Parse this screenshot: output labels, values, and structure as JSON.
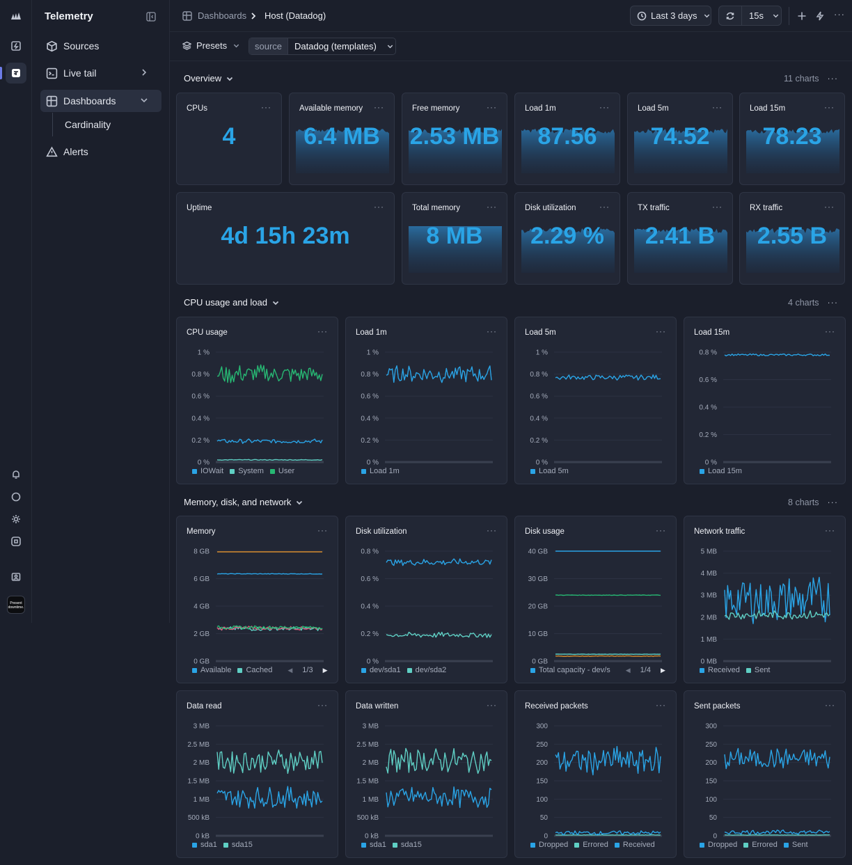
{
  "app": {
    "title": "Telemetry"
  },
  "nav": {
    "items": [
      {
        "label": "Sources",
        "icon": "cube-icon"
      },
      {
        "label": "Live tail",
        "icon": "terminal-icon"
      },
      {
        "label": "Dashboards",
        "icon": "dashboard-icon"
      },
      {
        "label": "Alerts",
        "icon": "warning-icon"
      }
    ],
    "sub": {
      "cardinality": "Cardinality"
    },
    "rail_icon": "logo-badge-icon"
  },
  "breadcrumb": {
    "root": "Dashboards",
    "current": "Host (Datadog)"
  },
  "toolbar": {
    "time_range": "Last 3 days",
    "refresh_interval": "15s"
  },
  "filters": {
    "presets": "Presets",
    "source_label": "source",
    "source_value": "Datadog (templates)"
  },
  "sections": {
    "overview": {
      "title": "Overview",
      "count": "11 charts"
    },
    "cpu": {
      "title": "CPU usage and load",
      "count": "4 charts"
    },
    "memory": {
      "title": "Memory, disk, and network",
      "count": "8 charts"
    }
  },
  "stats": [
    {
      "title": "CPUs",
      "value": "4"
    },
    {
      "title": "Available memory",
      "value": "6.4 MB"
    },
    {
      "title": "Free memory",
      "value": "2.53 MB"
    },
    {
      "title": "Load 1m",
      "value": "87.56"
    },
    {
      "title": "Load 5m",
      "value": "74.52"
    },
    {
      "title": "Load 15m",
      "value": "78.23"
    },
    {
      "title": "Uptime",
      "value": "4d 15h 23m"
    },
    {
      "title": "Total memory",
      "value": "8 MB"
    },
    {
      "title": "Disk utilization",
      "value": "2.29 %"
    },
    {
      "title": "TX traffic",
      "value": "2.41 B"
    },
    {
      "title": "RX traffic",
      "value": "2.55 B"
    }
  ],
  "colors": {
    "blue": "#2aa4e6",
    "teal": "#5fcfc4",
    "green": "#27b873",
    "orange": "#d48a2c",
    "pink": "#d9577a"
  },
  "chart_data": [
    {
      "type": "line",
      "title": "CPU usage",
      "yticks": [
        "1 %",
        "0.8 %",
        "0.6 %",
        "0.4 %",
        "0.2 %",
        "0 %"
      ],
      "ylim": [
        0,
        1
      ],
      "series": [
        {
          "name": "IOWait",
          "color": "#2aa4e6",
          "level": 0.19,
          "amp": 0.025,
          "noise": "medium"
        },
        {
          "name": "System",
          "color": "#5fcfc4",
          "level": 0.02,
          "amp": 0.006,
          "noise": "low"
        },
        {
          "name": "User",
          "color": "#27b873",
          "level": 0.8,
          "amp": 0.09,
          "noise": "high"
        }
      ]
    },
    {
      "type": "line",
      "title": "Load 1m",
      "yticks": [
        "1 %",
        "0.8 %",
        "0.6 %",
        "0.4 %",
        "0.2 %",
        "0 %"
      ],
      "ylim": [
        0,
        1
      ],
      "series": [
        {
          "name": "Load 1m",
          "color": "#2aa4e6",
          "level": 0.8,
          "amp": 0.08,
          "noise": "high"
        }
      ]
    },
    {
      "type": "line",
      "title": "Load 5m",
      "yticks": [
        "1 %",
        "0.8 %",
        "0.6 %",
        "0.4 %",
        "0.2 %",
        "0 %"
      ],
      "ylim": [
        0,
        1
      ],
      "series": [
        {
          "name": "Load 5m",
          "color": "#2aa4e6",
          "level": 0.77,
          "amp": 0.03,
          "noise": "medium"
        }
      ]
    },
    {
      "type": "line",
      "title": "Load 15m",
      "yticks": [
        "0.8 %",
        "0.6 %",
        "0.4 %",
        "0.2 %",
        "0 %"
      ],
      "ylim": [
        0,
        0.8
      ],
      "series": [
        {
          "name": "Load 15m",
          "color": "#2aa4e6",
          "level": 0.78,
          "amp": 0.012,
          "noise": "low"
        }
      ]
    },
    {
      "type": "line",
      "title": "Memory",
      "yticks": [
        "8 GB",
        "6 GB",
        "4 GB",
        "2 GB",
        "0 GB"
      ],
      "ylim": [
        0,
        8
      ],
      "series": [
        {
          "name": "Available",
          "color": "#2aa4e6",
          "level": 6.35,
          "amp": 0.04,
          "noise": "low"
        },
        {
          "name": "Cached",
          "color": "#5fcfc4",
          "level": 2.35,
          "amp": 0.15,
          "noise": "high"
        },
        {
          "name": "",
          "color": "#d48a2c",
          "level": 7.95,
          "amp": 0,
          "noise": "none"
        },
        {
          "name": "",
          "color": "#d9577a",
          "level": 2.4,
          "amp": 0.15,
          "noise": "high"
        },
        {
          "name": "",
          "color": "#27b873",
          "level": 2.45,
          "amp": 0.12,
          "noise": "high"
        }
      ],
      "pager": "1/3"
    },
    {
      "type": "line",
      "title": "Disk utilization",
      "yticks": [
        "0.8 %",
        "0.6 %",
        "0.4 %",
        "0.2 %",
        "0 %"
      ],
      "ylim": [
        0,
        0.8
      ],
      "series": [
        {
          "name": "dev/sda1",
          "color": "#2aa4e6",
          "level": 0.72,
          "amp": 0.03,
          "noise": "medium"
        },
        {
          "name": "dev/sda2",
          "color": "#5fcfc4",
          "level": 0.19,
          "amp": 0.025,
          "noise": "medium"
        }
      ]
    },
    {
      "type": "line",
      "title": "Disk usage",
      "yticks": [
        "40 GB",
        "30 GB",
        "20 GB",
        "10 GB",
        "0 GB"
      ],
      "ylim": [
        0,
        40
      ],
      "series": [
        {
          "name": "Total capacity - dev/s",
          "color": "#2aa4e6",
          "level": 40,
          "amp": 0,
          "noise": "none"
        },
        {
          "name": "",
          "color": "#27b873",
          "level": 24,
          "amp": 0.15,
          "noise": "low"
        },
        {
          "name": "",
          "color": "#5fcfc4",
          "level": 2.5,
          "amp": 0.1,
          "noise": "low"
        },
        {
          "name": "",
          "color": "#d48a2c",
          "level": 1.8,
          "amp": 0.2,
          "noise": "low"
        }
      ],
      "pager": "1/4"
    },
    {
      "type": "line",
      "title": "Network traffic",
      "yticks": [
        "5 MB",
        "4 MB",
        "3 MB",
        "2 MB",
        "1 MB",
        "0 MB"
      ],
      "ylim": [
        0,
        5
      ],
      "series": [
        {
          "name": "Received",
          "color": "#2aa4e6",
          "level": 2.8,
          "amp": 1.1,
          "noise": "high"
        },
        {
          "name": "Sent",
          "color": "#5fcfc4",
          "level": 2.1,
          "amp": 0.25,
          "noise": "medium"
        }
      ]
    },
    {
      "type": "line",
      "title": "Data read",
      "yticks": [
        "3 MB",
        "2.5 MB",
        "2 MB",
        "1.5 MB",
        "1 MB",
        "500 kB",
        "0 kB"
      ],
      "ylim": [
        0,
        3
      ],
      "series": [
        {
          "name": "sda1",
          "color": "#2aa4e6",
          "level": 1.05,
          "amp": 0.3,
          "noise": "high"
        },
        {
          "name": "sda15",
          "color": "#5fcfc4",
          "level": 2.05,
          "amp": 0.35,
          "noise": "high"
        }
      ]
    },
    {
      "type": "line",
      "title": "Data written",
      "yticks": [
        "3 MB",
        "2.5 MB",
        "2 MB",
        "1.5 MB",
        "1 MB",
        "500 kB",
        "0 kB"
      ],
      "ylim": [
        0,
        3
      ],
      "series": [
        {
          "name": "sda1",
          "color": "#2aa4e6",
          "level": 1.05,
          "amp": 0.3,
          "noise": "high"
        },
        {
          "name": "sda15",
          "color": "#5fcfc4",
          "level": 2.05,
          "amp": 0.35,
          "noise": "high"
        }
      ]
    },
    {
      "type": "line",
      "title": "Received packets",
      "yticks": [
        "300",
        "250",
        "200",
        "150",
        "100",
        "50",
        "0"
      ],
      "ylim": [
        0,
        300
      ],
      "series": [
        {
          "name": "Dropped",
          "color": "#2aa4e6",
          "level": 205,
          "amp": 40,
          "noise": "high"
        },
        {
          "name": "Errored",
          "color": "#5fcfc4",
          "level": 2,
          "amp": 1,
          "noise": "low"
        },
        {
          "name": "Received",
          "color": "#2aa4e6",
          "level": 8,
          "amp": 6,
          "noise": "high"
        }
      ]
    },
    {
      "type": "line",
      "title": "Sent packets",
      "yticks": [
        "300",
        "250",
        "200",
        "150",
        "100",
        "50",
        "0"
      ],
      "ylim": [
        0,
        300
      ],
      "series": [
        {
          "name": "Dropped",
          "color": "#2aa4e6",
          "level": 210,
          "amp": 30,
          "noise": "high"
        },
        {
          "name": "Errored",
          "color": "#5fcfc4",
          "level": 2,
          "amp": 1,
          "noise": "low"
        },
        {
          "name": "Sent",
          "color": "#2aa4e6",
          "level": 10,
          "amp": 6,
          "noise": "high"
        }
      ]
    }
  ]
}
